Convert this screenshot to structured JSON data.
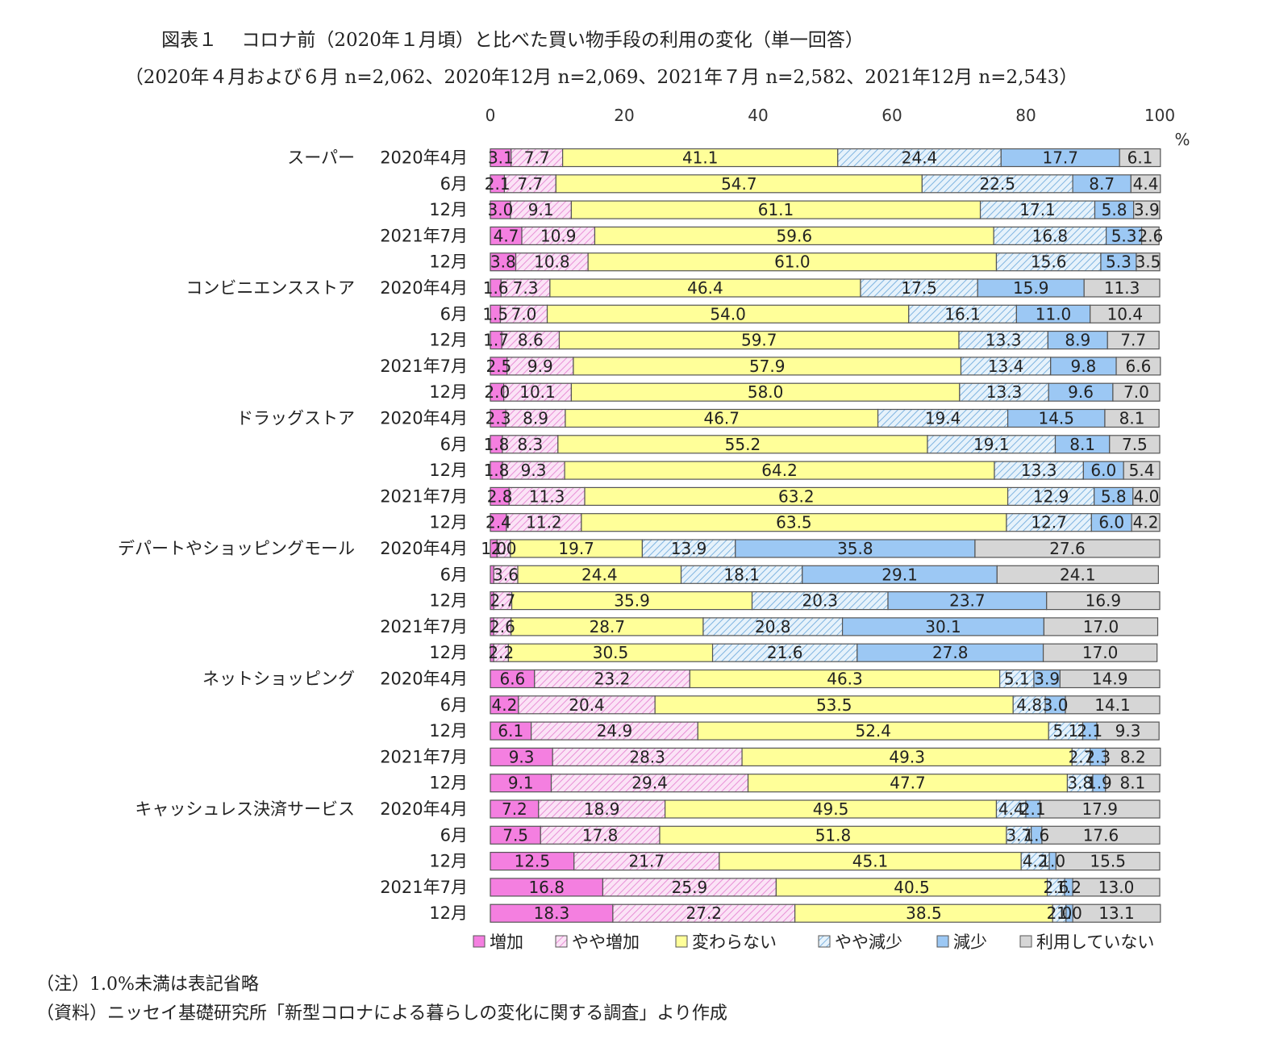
{
  "title": "図表１　 コロナ前（2020年１月頃）と比べた買い物手段の利用の変化（単一回答）",
  "subtitle": "（2020年４月および６月 n=2,062、2020年12月 n=2,069、2021年７月 n=2,582、2021年12月 n=2,543）",
  "notes": [
    "（注）1.0%未満は表記省略",
    "（資料）ニッセイ基礎研究所「新型コロナによる暮らしの変化に関する調査」より作成"
  ],
  "chart_data": {
    "type": "bar",
    "orientation": "horizontal",
    "stacked": true,
    "xlim": [
      0,
      100
    ],
    "xticks": [
      0,
      20,
      40,
      60,
      80,
      100
    ],
    "xunit": "%",
    "legend_position": "bottom",
    "series": [
      {
        "name": "増加",
        "color": "#f47fe0",
        "pattern": "solid"
      },
      {
        "name": "やや増加",
        "color": "#f8c8f0",
        "pattern": "hatch"
      },
      {
        "name": "変わらない",
        "color": "#ffff99",
        "pattern": "solid"
      },
      {
        "name": "やや減少",
        "color": "#bfe0f4",
        "pattern": "hatch"
      },
      {
        "name": "減少",
        "color": "#9cc8f4",
        "pattern": "solid"
      },
      {
        "name": "利用していない",
        "color": "#d6d6d6",
        "pattern": "solid"
      }
    ],
    "groups": [
      {
        "name": "スーパー",
        "rows": [
          {
            "period": "2020年4月",
            "values": [
              3.1,
              7.7,
              41.1,
              24.4,
              17.7,
              6.1
            ]
          },
          {
            "period": "6月",
            "values": [
              2.1,
              7.7,
              54.7,
              22.5,
              8.7,
              4.4
            ]
          },
          {
            "period": "12月",
            "values": [
              3.0,
              9.1,
              61.1,
              17.1,
              5.8,
              3.9
            ]
          },
          {
            "period": "2021年7月",
            "values": [
              4.7,
              10.9,
              59.6,
              16.8,
              5.3,
              2.6
            ]
          },
          {
            "period": "12月",
            "values": [
              3.8,
              10.8,
              61.0,
              15.6,
              5.3,
              3.5
            ]
          }
        ]
      },
      {
        "name": "コンビニエンスストア",
        "rows": [
          {
            "period": "2020年4月",
            "values": [
              1.6,
              7.3,
              46.4,
              17.5,
              15.9,
              11.3
            ]
          },
          {
            "period": "6月",
            "values": [
              1.5,
              7.0,
              54.0,
              16.1,
              11.0,
              10.4
            ]
          },
          {
            "period": "12月",
            "values": [
              1.7,
              8.6,
              59.7,
              13.3,
              8.9,
              7.7
            ]
          },
          {
            "period": "2021年7月",
            "values": [
              2.5,
              9.9,
              57.9,
              13.4,
              9.8,
              6.6
            ]
          },
          {
            "period": "12月",
            "values": [
              2.0,
              10.1,
              58.0,
              13.3,
              9.6,
              7.0
            ]
          }
        ]
      },
      {
        "name": "ドラッグストア",
        "rows": [
          {
            "period": "2020年4月",
            "values": [
              2.3,
              8.9,
              46.7,
              19.4,
              14.5,
              8.1
            ]
          },
          {
            "period": "6月",
            "values": [
              1.8,
              8.3,
              55.2,
              19.1,
              8.1,
              7.5
            ]
          },
          {
            "period": "12月",
            "values": [
              1.8,
              9.3,
              64.2,
              13.3,
              6.0,
              5.4
            ]
          },
          {
            "period": "2021年7月",
            "values": [
              2.8,
              11.3,
              63.2,
              12.9,
              5.8,
              4.0
            ]
          },
          {
            "period": "12月",
            "values": [
              2.4,
              11.2,
              63.5,
              12.7,
              6.0,
              4.2
            ]
          }
        ]
      },
      {
        "name": "デパートやショッピングモール",
        "rows": [
          {
            "period": "2020年4月",
            "values": [
              1.0,
              2.0,
              19.7,
              13.9,
              35.8,
              27.6
            ]
          },
          {
            "period": "6月",
            "values": [
              0.5,
              3.6,
              24.4,
              18.1,
              29.1,
              24.1
            ]
          },
          {
            "period": "12月",
            "values": [
              0.5,
              2.7,
              35.9,
              20.3,
              23.7,
              16.9
            ]
          },
          {
            "period": "2021年7月",
            "values": [
              0.5,
              2.6,
              28.7,
              20.8,
              30.1,
              17.0
            ]
          },
          {
            "period": "12月",
            "values": [
              0.5,
              2.2,
              30.5,
              21.6,
              27.8,
              17.0
            ]
          }
        ]
      },
      {
        "name": "ネットショッピング",
        "rows": [
          {
            "period": "2020年4月",
            "values": [
              6.6,
              23.2,
              46.3,
              5.1,
              3.9,
              14.9
            ]
          },
          {
            "period": "6月",
            "values": [
              4.2,
              20.4,
              53.5,
              4.8,
              3.0,
              14.1
            ]
          },
          {
            "period": "12月",
            "values": [
              6.1,
              24.9,
              52.4,
              5.1,
              2.1,
              9.3
            ]
          },
          {
            "period": "2021年7月",
            "values": [
              9.3,
              28.3,
              49.3,
              2.7,
              2.3,
              8.2
            ]
          },
          {
            "period": "12月",
            "values": [
              9.1,
              29.4,
              47.7,
              3.8,
              1.9,
              8.1
            ]
          }
        ]
      },
      {
        "name": "キャッシュレス決済サービス",
        "rows": [
          {
            "period": "2020年4月",
            "values": [
              7.2,
              18.9,
              49.5,
              4.4,
              2.1,
              17.9
            ]
          },
          {
            "period": "6月",
            "values": [
              7.5,
              17.8,
              51.8,
              3.7,
              1.6,
              17.6
            ]
          },
          {
            "period": "12月",
            "values": [
              12.5,
              21.7,
              45.1,
              4.2,
              1.0,
              15.5
            ]
          },
          {
            "period": "2021年7月",
            "values": [
              16.8,
              25.9,
              40.5,
              2.6,
              1.2,
              13.0
            ]
          },
          {
            "period": "12月",
            "values": [
              18.3,
              27.2,
              38.5,
              2.0,
              1.0,
              13.1
            ]
          }
        ]
      }
    ]
  }
}
